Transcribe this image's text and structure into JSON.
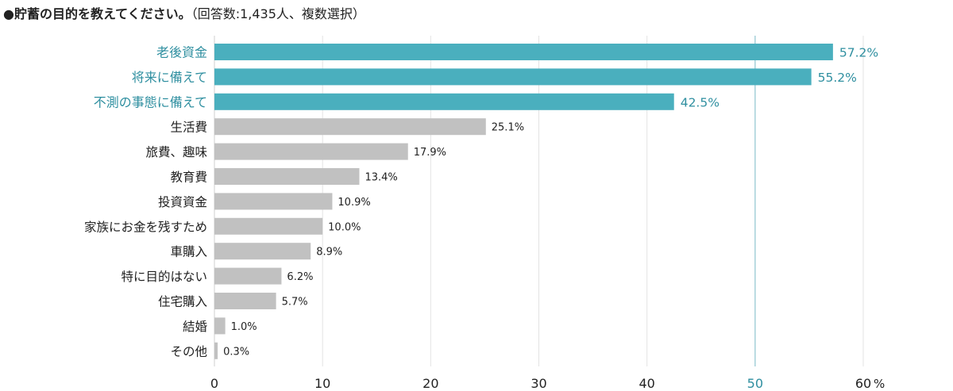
{
  "title": {
    "main": "●貯蓄の目的を教えてください。",
    "sub": "（回答数:1,435人、複数選択）"
  },
  "colors": {
    "highlight": "#4aafbe",
    "normal": "#c1c1c1",
    "highlight_text": "#2f8fa0",
    "text": "#222222",
    "grid": "#e3e3e3",
    "ref_line": "#8fc4d0"
  },
  "chart_data": {
    "type": "bar",
    "orientation": "horizontal",
    "categories": [
      "老後資金",
      "将来に備えて",
      "不測の事態に備えて",
      "生活費",
      "旅費、趣味",
      "教育費",
      "投資資金",
      "家族にお金を残すため",
      "車購入",
      "特に目的はない",
      "住宅購入",
      "結婚",
      "その他"
    ],
    "values": [
      57.2,
      55.2,
      42.5,
      25.1,
      17.9,
      13.4,
      10.9,
      10.0,
      8.9,
      6.2,
      5.7,
      1.0,
      0.3
    ],
    "value_labels": [
      "57.2%",
      "55.2%",
      "42.5%",
      "25.1%",
      "17.9%",
      "13.4%",
      "10.9%",
      "10.0%",
      "8.9%",
      "6.2%",
      "5.7%",
      "1.0%",
      "0.3%"
    ],
    "highlighted": [
      true,
      true,
      true,
      false,
      false,
      false,
      false,
      false,
      false,
      false,
      false,
      false,
      false
    ],
    "xlim": [
      0,
      60
    ],
    "x_ticks": [
      0,
      10,
      20,
      30,
      40,
      50,
      60
    ],
    "x_tick_labels": [
      "0",
      "10",
      "20",
      "30",
      "40",
      "50",
      "60"
    ],
    "x_unit": "%",
    "highlight_tick": 50,
    "grid": true
  }
}
